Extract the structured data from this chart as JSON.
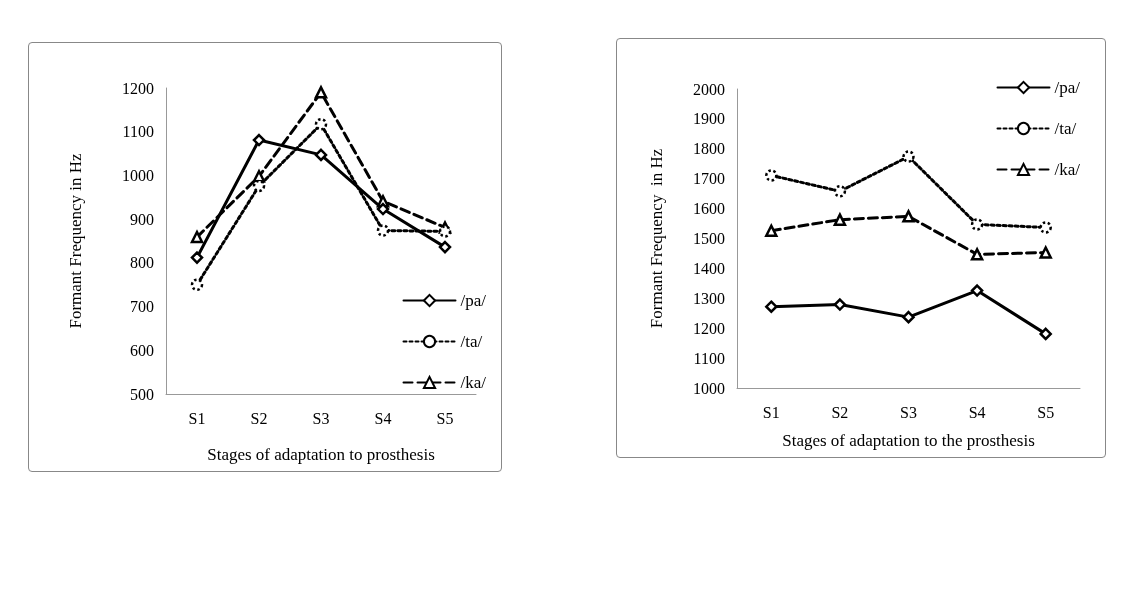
{
  "chart_data": [
    {
      "type": "line",
      "xlabel": "Stages of adaptation to prosthesis",
      "ylabel": "Formant Frequency in Hz",
      "categories": [
        "S1",
        "S2",
        "S3",
        "S4",
        "S5"
      ],
      "ylim": [
        500,
        1200
      ],
      "yticks": [
        500,
        600,
        700,
        800,
        900,
        1000,
        1100,
        1200
      ],
      "grid": false,
      "legend": "bottom right",
      "series": [
        {
          "name": "/pa/",
          "color": "#000000",
          "marker": "diamond",
          "line_style": "solid",
          "values": [
            812,
            1081,
            1047,
            923,
            836
          ]
        },
        {
          "name": "/ta/",
          "color": "#000000",
          "marker": "circle",
          "line_style": "dotted",
          "values": [
            750,
            976,
            1117,
            874,
            872
          ]
        },
        {
          "name": "/ka/",
          "color": "#000000",
          "marker": "triangle",
          "line_style": "dashed",
          "values": [
            859,
            998,
            1190,
            941,
            881
          ]
        }
      ]
    },
    {
      "type": "line",
      "xlabel": "Stages of adaptation to the prosthesis",
      "ylabel": "Formant Frequency  in Hz",
      "categories": [
        "S1",
        "S2",
        "S3",
        "S4",
        "S5"
      ],
      "ylim": [
        1000,
        2000
      ],
      "yticks": [
        1000,
        1100,
        1200,
        1300,
        1400,
        1500,
        1600,
        1700,
        1800,
        1900,
        2000
      ],
      "grid": false,
      "legend": "top right",
      "series": [
        {
          "name": "/pa/",
          "color": "#000000",
          "marker": "diamond",
          "line_style": "solid",
          "values": [
            1272,
            1279,
            1237,
            1326,
            1181
          ]
        },
        {
          "name": "/ta/",
          "color": "#000000",
          "marker": "circle",
          "line_style": "dotted",
          "values": [
            1711,
            1658,
            1774,
            1547,
            1537
          ]
        },
        {
          "name": "/ka/",
          "color": "#000000",
          "marker": "triangle",
          "line_style": "dashed",
          "values": [
            1526,
            1563,
            1574,
            1447,
            1453
          ]
        }
      ]
    }
  ]
}
